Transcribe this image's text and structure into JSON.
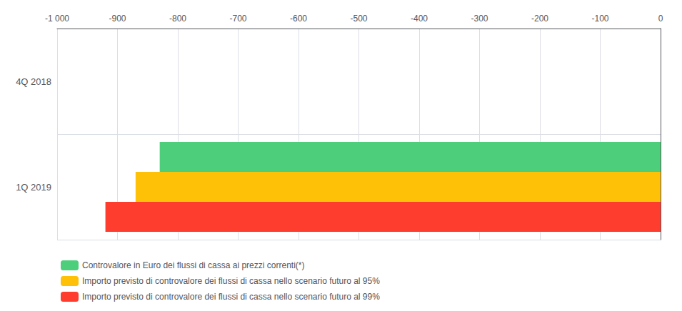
{
  "chart_data": {
    "type": "bar",
    "orientation": "horizontal",
    "categories": [
      "4Q 2018",
      "1Q 2019"
    ],
    "series": [
      {
        "name": "Controvalore in Euro dei flussi di cassa ai prezzi correnti(*)",
        "color": "#4dce7a",
        "values": [
          0,
          -830
        ]
      },
      {
        "name": "Importo previsto di controvalore dei flussi di cassa nello scenario futuro al 95%",
        "color": "#ffc107",
        "values": [
          0,
          -870
        ]
      },
      {
        "name": "Importo previsto di controvalore dei flussi di cassa nello scenario futuro al 99%",
        "color": "#ff3d2e",
        "values": [
          0,
          -920
        ]
      }
    ],
    "xlim": [
      -1000,
      0
    ],
    "xticks": [
      {
        "value": -1000,
        "label": "-1 000"
      },
      -900,
      -800,
      -700,
      -600,
      -500,
      -400,
      -300,
      -200,
      -100,
      0
    ],
    "grid": true,
    "legend": "lower left"
  }
}
